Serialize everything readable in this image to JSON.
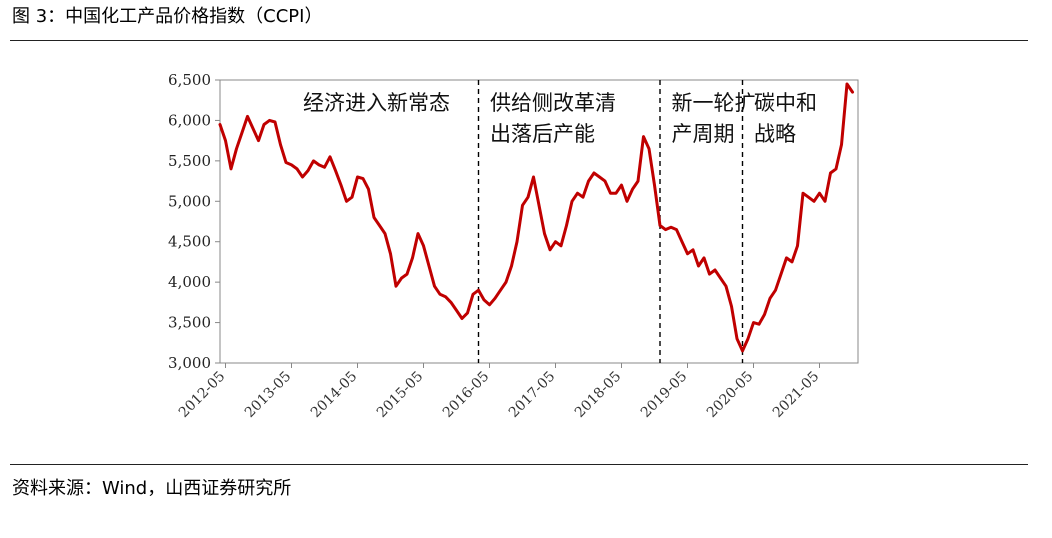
{
  "header": {
    "figure_title": "图 3：中国化工产品价格指数（CCPI）"
  },
  "footer": {
    "source": "资料来源：Wind，山西证券研究所"
  },
  "colors": {
    "line": "#c00000",
    "axis": "#888888",
    "divider": "#000000"
  },
  "chart_data": {
    "type": "line",
    "title": "",
    "xlabel": "",
    "ylabel": "",
    "ylim": [
      3000,
      6500
    ],
    "yticks": [
      3000,
      3500,
      4000,
      4500,
      5000,
      5500,
      6000,
      6500
    ],
    "ytick_labels": [
      "3,000",
      "3,500",
      "4,000",
      "4,500",
      "5,000",
      "5,500",
      "6,000",
      "6,500"
    ],
    "xlim": [
      "2012-04",
      "2021-12"
    ],
    "xticks": [
      "2012-05",
      "2013-05",
      "2014-05",
      "2015-05",
      "2016-05",
      "2017-05",
      "2018-05",
      "2019-05",
      "2020-05",
      "2021-05"
    ],
    "grid": false,
    "legend": "none",
    "phase_dividers": [
      "2016-03",
      "2018-12",
      "2020-03"
    ],
    "phase_labels": [
      {
        "lines": [
          "经济进入新常态"
        ],
        "anchor": "2013-06"
      },
      {
        "lines": [
          "供给侧改革清",
          "出落后产能"
        ],
        "anchor": "2016-04"
      },
      {
        "lines": [
          "新一轮扩",
          "产周期"
        ],
        "anchor": "2019-01"
      },
      {
        "lines": [
          "碳中和",
          "战略"
        ],
        "anchor": "2020-04"
      }
    ],
    "series": [
      {
        "x": [
          "2012-04",
          "2012-05",
          "2012-06",
          "2012-07",
          "2012-08",
          "2012-09",
          "2012-10",
          "2012-11",
          "2012-12",
          "2013-01",
          "2013-02",
          "2013-03",
          "2013-04",
          "2013-05",
          "2013-06",
          "2013-07",
          "2013-08",
          "2013-09",
          "2013-10",
          "2013-11",
          "2013-12",
          "2014-01",
          "2014-02",
          "2014-03",
          "2014-04",
          "2014-05",
          "2014-06",
          "2014-07",
          "2014-08",
          "2014-09",
          "2014-10",
          "2014-11",
          "2014-12",
          "2015-01",
          "2015-02",
          "2015-03",
          "2015-04",
          "2015-05",
          "2015-06",
          "2015-07",
          "2015-08",
          "2015-09",
          "2015-10",
          "2015-11",
          "2015-12",
          "2016-01",
          "2016-02",
          "2016-03",
          "2016-04",
          "2016-05",
          "2016-06",
          "2016-07",
          "2016-08",
          "2016-09",
          "2016-10",
          "2016-11",
          "2016-12",
          "2017-01",
          "2017-02",
          "2017-03",
          "2017-04",
          "2017-05",
          "2017-06",
          "2017-07",
          "2017-08",
          "2017-09",
          "2017-10",
          "2017-11",
          "2017-12",
          "2018-01",
          "2018-02",
          "2018-03",
          "2018-04",
          "2018-05",
          "2018-06",
          "2018-07",
          "2018-08",
          "2018-09",
          "2018-10",
          "2018-11",
          "2018-12",
          "2019-01",
          "2019-02",
          "2019-03",
          "2019-04",
          "2019-05",
          "2019-06",
          "2019-07",
          "2019-08",
          "2019-09",
          "2019-10",
          "2019-11",
          "2019-12",
          "2020-01",
          "2020-02",
          "2020-03",
          "2020-04",
          "2020-05",
          "2020-06",
          "2020-07",
          "2020-08",
          "2020-09",
          "2020-10",
          "2020-11",
          "2020-12",
          "2021-01",
          "2021-02",
          "2021-03",
          "2021-04",
          "2021-05",
          "2021-06",
          "2021-07",
          "2021-08",
          "2021-09",
          "2021-10",
          "2021-11"
        ],
        "values": [
          5950,
          5750,
          5400,
          5650,
          5850,
          6050,
          5900,
          5750,
          5950,
          6000,
          5980,
          5700,
          5480,
          5450,
          5400,
          5300,
          5380,
          5500,
          5450,
          5420,
          5550,
          5380,
          5200,
          5000,
          5050,
          5300,
          5280,
          5150,
          4800,
          4700,
          4600,
          4350,
          3950,
          4050,
          4100,
          4300,
          4600,
          4450,
          4200,
          3950,
          3850,
          3820,
          3750,
          3650,
          3550,
          3620,
          3850,
          3900,
          3780,
          3720,
          3800,
          3900,
          4000,
          4200,
          4500,
          4950,
          5050,
          5300,
          4950,
          4600,
          4400,
          4500,
          4450,
          4700,
          5000,
          5100,
          5050,
          5250,
          5350,
          5300,
          5250,
          5100,
          5100,
          5200,
          5000,
          5150,
          5250,
          5800,
          5650,
          5200,
          4700,
          4650,
          4680,
          4650,
          4500,
          4350,
          4400,
          4200,
          4300,
          4100,
          4150,
          4050,
          3950,
          3700,
          3300,
          3150,
          3300,
          3500,
          3480,
          3600,
          3800,
          3900,
          4100,
          4300,
          4250,
          4450,
          5100,
          5050,
          5000,
          5100,
          5000,
          5350,
          5400,
          5700,
          6450,
          6350
        ]
      }
    ]
  }
}
